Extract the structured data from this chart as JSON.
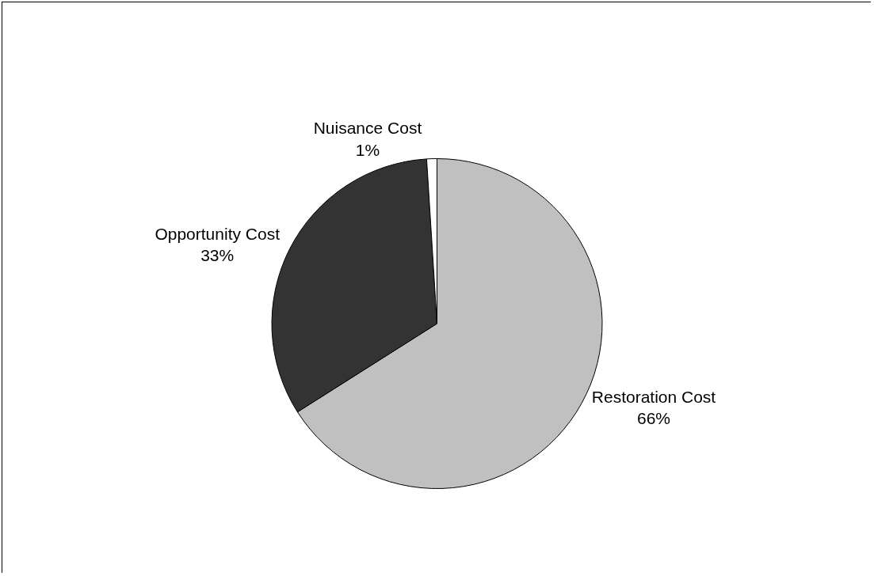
{
  "chart_data": {
    "type": "pie",
    "categories": [
      "Restoration Cost",
      "Opportunity Cost",
      "Nuisance Cost"
    ],
    "values": [
      66,
      33,
      1
    ],
    "value_labels": [
      "66%",
      "33%",
      "1%"
    ],
    "colors": [
      "#c0c0c0",
      "#333333",
      "#ffffff"
    ],
    "legend": false
  }
}
